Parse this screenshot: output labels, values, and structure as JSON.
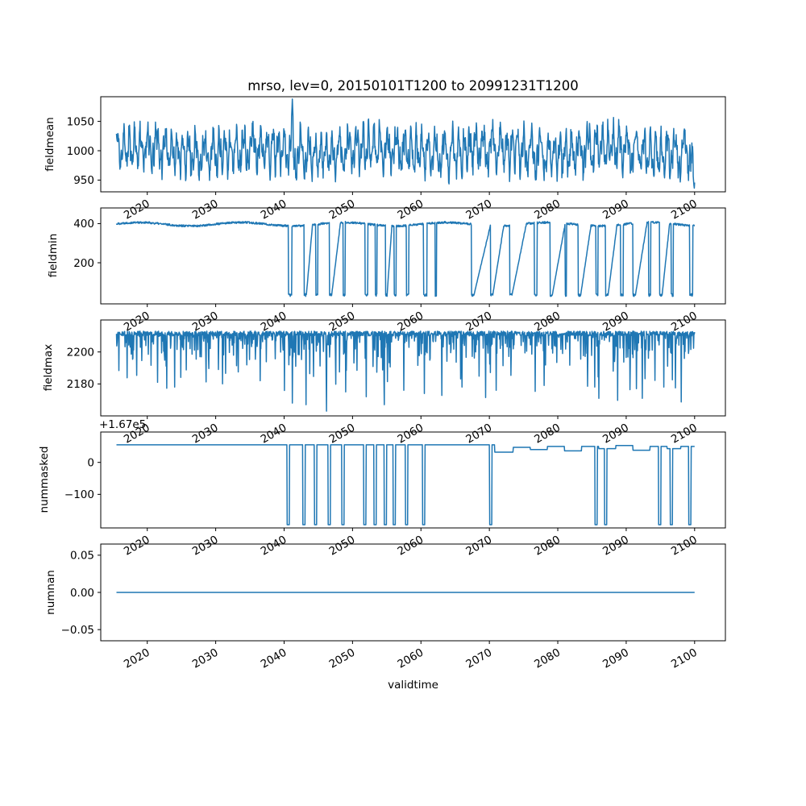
{
  "title": "mrso, lev=0, 20150101T1200 to 20991231T1200",
  "xlabel": "validtime",
  "colors": {
    "line": "#1f77b4",
    "text": "#000000",
    "spine": "#000000",
    "background": "#ffffff"
  },
  "x_axis": {
    "start": 2015.5,
    "end": 2100.0,
    "step": 0.05,
    "xlim": [
      2013.2,
      2104.5
    ],
    "ticks": [
      2020,
      2030,
      2040,
      2050,
      2060,
      2070,
      2080,
      2090,
      2100
    ],
    "tick_labels": [
      "2020",
      "2030",
      "2040",
      "2050",
      "2060",
      "2070",
      "2080",
      "2090",
      "2100"
    ]
  },
  "chart_data": [
    {
      "type": "line",
      "ylabel": "fieldmean",
      "ylim": [
        930,
        1092
      ],
      "yticks": [
        950,
        1000,
        1050
      ],
      "ytick_labels": [
        "950",
        "1000",
        "1050"
      ],
      "gen": {
        "kind": "noisy",
        "seed": 11,
        "baseline": 1000,
        "amp1": 26,
        "amp2": 15,
        "jitter": 15,
        "min": 936,
        "max": 1089,
        "peaks": [
          [
            2041.2,
            1088
          ]
        ],
        "tail_drop": {
          "start": 2099.2,
          "rate": 70
        }
      }
    },
    {
      "type": "line",
      "ylabel": "fieldmin",
      "ylim": [
        -10,
        480
      ],
      "yticks": [
        200,
        400
      ],
      "ytick_labels": [
        "200",
        "400"
      ],
      "gen": {
        "kind": "baseline-drops",
        "seed": 22,
        "baseline": 400,
        "jitter": 5,
        "low": 35,
        "events": [
          [
            2040.6,
            0.5,
            0
          ],
          [
            2042.9,
            0.35,
            0.9
          ],
          [
            2044.6,
            0.3,
            0
          ],
          [
            2046.6,
            0.35,
            1.3
          ],
          [
            2048.6,
            0.3,
            0
          ],
          [
            2051.8,
            0.4,
            0
          ],
          [
            2053.3,
            0.25,
            0
          ],
          [
            2054.8,
            0.25,
            0.7
          ],
          [
            2056.1,
            0.3,
            0
          ],
          [
            2057.9,
            0.35,
            0
          ],
          [
            2060.4,
            0.5,
            0
          ],
          [
            2062.1,
            0.2,
            0
          ],
          [
            2067.4,
            0.35,
            2.4
          ],
          [
            2070.2,
            0.3,
            1.6
          ],
          [
            2073.0,
            0.3,
            2.1
          ],
          [
            2076.6,
            0.4,
            0
          ],
          [
            2078.9,
            0.3,
            1.9
          ],
          [
            2081.0,
            0.3,
            0
          ],
          [
            2083.0,
            0.35,
            1.5
          ],
          [
            2085.6,
            0.3,
            0
          ],
          [
            2087.0,
            0.35,
            1.3
          ],
          [
            2089.2,
            0.4,
            0
          ],
          [
            2091.0,
            0.35,
            1.7
          ],
          [
            2093.3,
            0.3,
            0
          ],
          [
            2094.9,
            0.35,
            1.1
          ],
          [
            2096.6,
            0.3,
            0
          ],
          [
            2099.3,
            0.45,
            0
          ]
        ]
      }
    },
    {
      "type": "line",
      "ylabel": "fieldmax",
      "ylim": [
        2160,
        2220
      ],
      "yticks": [
        2180,
        2200
      ],
      "ytick_labels": [
        "2180",
        "2200"
      ],
      "gen": {
        "kind": "spiky-top",
        "seed": 33,
        "baseline": 2213,
        "jitter": 3,
        "spikeProb": 0.28,
        "spikeScale": 9,
        "maxDepth": 44,
        "deep": [
          [
            2021.5,
            2181
          ],
          [
            2024.0,
            2178
          ],
          [
            2031.0,
            2180
          ],
          [
            2036.5,
            2182
          ],
          [
            2041.2,
            2168
          ],
          [
            2046.2,
            2163
          ],
          [
            2049.0,
            2175
          ],
          [
            2052.0,
            2172
          ],
          [
            2057.5,
            2176
          ],
          [
            2060.5,
            2174
          ],
          [
            2066.0,
            2178
          ],
          [
            2071.0,
            2176
          ],
          [
            2078.0,
            2179
          ],
          [
            2086.0,
            2171
          ],
          [
            2091.5,
            2177
          ],
          [
            2095.5,
            2178
          ]
        ]
      }
    },
    {
      "type": "line",
      "ylabel": "nummasked",
      "offset_text": "+1.67e5",
      "ylim": [
        -205,
        95
      ],
      "yticks": [
        -100,
        0
      ],
      "ytick_labels": [
        "−100",
        "0"
      ],
      "gen": {
        "kind": "steps-drops",
        "seed": 44,
        "baseline": 55,
        "steps": [
          [
            2070.8,
            32
          ],
          [
            2073.5,
            47
          ],
          [
            2076.0,
            40
          ],
          [
            2078.5,
            50
          ],
          [
            2081.0,
            36
          ],
          [
            2083.5,
            50
          ],
          [
            2086.0,
            43
          ],
          [
            2088.5,
            53
          ],
          [
            2091.0,
            38
          ],
          [
            2093.5,
            50
          ],
          [
            2096.0,
            43
          ],
          [
            2098.0,
            50
          ]
        ],
        "drops": [
          2040.6,
          2042.9,
          2044.6,
          2046.6,
          2048.6,
          2051.8,
          2053.3,
          2054.8,
          2056.1,
          2057.9,
          2060.4,
          2070.2,
          2085.6,
          2087.0,
          2094.9,
          2096.6,
          2099.3
        ],
        "dropLow": -195,
        "dropWidth": 0.35
      }
    },
    {
      "type": "line",
      "ylabel": "numnan",
      "ylim": [
        -0.065,
        0.065
      ],
      "yticks": [
        -0.05,
        0.0,
        0.05
      ],
      "ytick_labels": [
        "−0.05",
        "0.00",
        "0.05"
      ],
      "gen": {
        "kind": "constant",
        "value": 0
      }
    }
  ]
}
